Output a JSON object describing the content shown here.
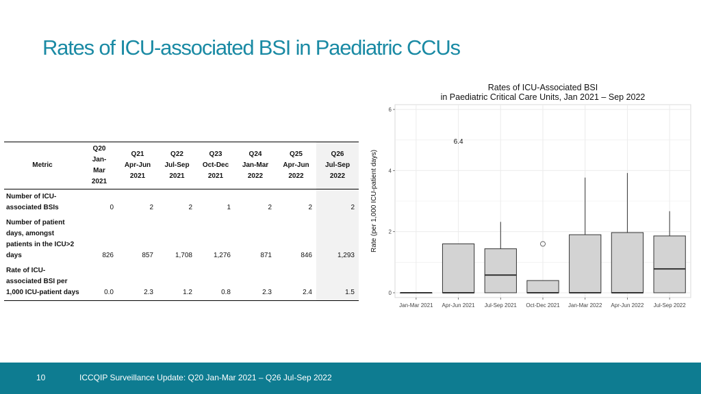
{
  "slide": {
    "title": "Rates of ICU-associated BSI in Paediatric CCUs",
    "footer_page": "10",
    "footer_text": "ICCQIP Surveillance Update: Q20 Jan-Mar 2021 – Q26 Jul-Sep 2022"
  },
  "table": {
    "header_metric": "Metric",
    "columns": [
      "Q20\nJan-\nMar\n2021",
      "Q21\nApr-Jun\n2021",
      "Q22\nJul-Sep\n2021",
      "Q23\nOct-Dec\n2021",
      "Q24\nJan-Mar\n2022",
      "Q25\nApr-Jun\n2022",
      "Q26\nJul-Sep\n2022"
    ],
    "rows": [
      {
        "metric": "Number of ICU-associated BSIs",
        "values": [
          "0",
          "2",
          "2",
          "1",
          "2",
          "2",
          "2"
        ]
      },
      {
        "metric": "Number of patient days, amongst patients in the ICU>2 days",
        "values": [
          "826",
          "857",
          "1,708",
          "1,276",
          "871",
          "846",
          "1,293"
        ]
      },
      {
        "metric": "Rate of ICU-associated BSI per 1,000 ICU-patient days",
        "values": [
          "0.0",
          "2.3",
          "1.2",
          "0.8",
          "2.3",
          "2.4",
          "1.5"
        ]
      }
    ]
  },
  "chart_data": {
    "type": "box",
    "title": "Rates of ICU-Associated BSI",
    "subtitle": "in Paediatric Critical Care Units, Jan 2021 – Sep 2022",
    "xlabel": "",
    "ylabel": "Rate (per 1,000 ICU-patient days)",
    "ylim": [
      0,
      6
    ],
    "yticks": [
      "0",
      "2",
      "4",
      "6"
    ],
    "grid": true,
    "categories": [
      "Jan-Mar 2021",
      "Apr-Jun 2021",
      "Jul-Sep 2021",
      "Oct-Dec 2021",
      "Jan-Mar 2022",
      "Apr-Jun 2022",
      "Jul-Sep 2022"
    ],
    "boxes": [
      {
        "q1": 0,
        "median": 0,
        "q3": 0,
        "whisker_high": 0
      },
      {
        "q1": 0,
        "median": 0,
        "q3": 1.6,
        "whisker_high": 1.6
      },
      {
        "q1": 0,
        "median": 0.58,
        "q3": 1.44,
        "whisker_high": 2.32
      },
      {
        "q1": 0,
        "median": 0,
        "q3": 0.4,
        "whisker_high": 0.4,
        "outlier": 1.6
      },
      {
        "q1": 0,
        "median": 0,
        "q3": 1.9,
        "whisker_high": 3.77
      },
      {
        "q1": 0,
        "median": 0,
        "q3": 1.97,
        "whisker_high": 3.92
      },
      {
        "q1": 0,
        "median": 0.78,
        "q3": 1.86,
        "whisker_high": 2.67
      }
    ],
    "annotation": {
      "text": "6.4",
      "category": "Apr-Jun 2021"
    },
    "colors": {
      "box_fill": "#d3d3d3",
      "box_stroke": "#333333",
      "grid": "#ebebeb"
    }
  }
}
